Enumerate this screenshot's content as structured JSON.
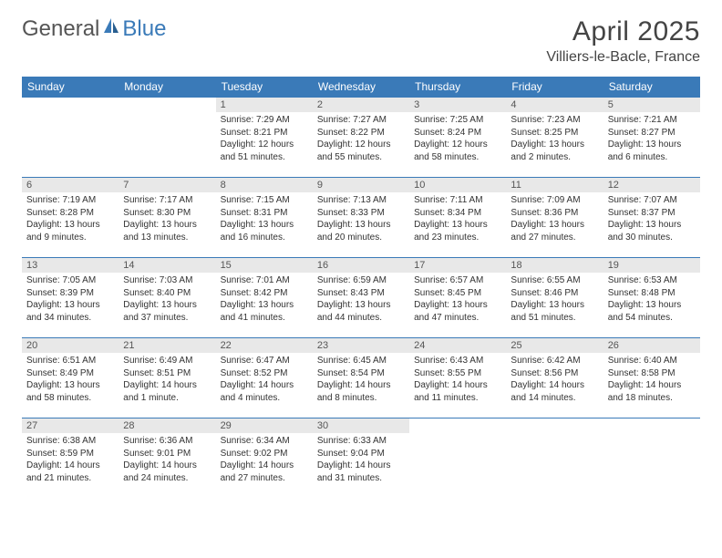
{
  "logo": {
    "text1": "General",
    "text2": "Blue"
  },
  "title": "April 2025",
  "location": "Villiers-le-Bacle, France",
  "colors": {
    "header_bg": "#3a7ab8",
    "header_text": "#ffffff",
    "daynum_bg": "#e8e8e8",
    "border": "#3a7ab8",
    "body_text": "#333333"
  },
  "day_headers": [
    "Sunday",
    "Monday",
    "Tuesday",
    "Wednesday",
    "Thursday",
    "Friday",
    "Saturday"
  ],
  "weeks": [
    [
      {
        "n": "",
        "sr": "",
        "ss": "",
        "dl": ""
      },
      {
        "n": "",
        "sr": "",
        "ss": "",
        "dl": ""
      },
      {
        "n": "1",
        "sr": "Sunrise: 7:29 AM",
        "ss": "Sunset: 8:21 PM",
        "dl": "Daylight: 12 hours and 51 minutes."
      },
      {
        "n": "2",
        "sr": "Sunrise: 7:27 AM",
        "ss": "Sunset: 8:22 PM",
        "dl": "Daylight: 12 hours and 55 minutes."
      },
      {
        "n": "3",
        "sr": "Sunrise: 7:25 AM",
        "ss": "Sunset: 8:24 PM",
        "dl": "Daylight: 12 hours and 58 minutes."
      },
      {
        "n": "4",
        "sr": "Sunrise: 7:23 AM",
        "ss": "Sunset: 8:25 PM",
        "dl": "Daylight: 13 hours and 2 minutes."
      },
      {
        "n": "5",
        "sr": "Sunrise: 7:21 AM",
        "ss": "Sunset: 8:27 PM",
        "dl": "Daylight: 13 hours and 6 minutes."
      }
    ],
    [
      {
        "n": "6",
        "sr": "Sunrise: 7:19 AM",
        "ss": "Sunset: 8:28 PM",
        "dl": "Daylight: 13 hours and 9 minutes."
      },
      {
        "n": "7",
        "sr": "Sunrise: 7:17 AM",
        "ss": "Sunset: 8:30 PM",
        "dl": "Daylight: 13 hours and 13 minutes."
      },
      {
        "n": "8",
        "sr": "Sunrise: 7:15 AM",
        "ss": "Sunset: 8:31 PM",
        "dl": "Daylight: 13 hours and 16 minutes."
      },
      {
        "n": "9",
        "sr": "Sunrise: 7:13 AM",
        "ss": "Sunset: 8:33 PM",
        "dl": "Daylight: 13 hours and 20 minutes."
      },
      {
        "n": "10",
        "sr": "Sunrise: 7:11 AM",
        "ss": "Sunset: 8:34 PM",
        "dl": "Daylight: 13 hours and 23 minutes."
      },
      {
        "n": "11",
        "sr": "Sunrise: 7:09 AM",
        "ss": "Sunset: 8:36 PM",
        "dl": "Daylight: 13 hours and 27 minutes."
      },
      {
        "n": "12",
        "sr": "Sunrise: 7:07 AM",
        "ss": "Sunset: 8:37 PM",
        "dl": "Daylight: 13 hours and 30 minutes."
      }
    ],
    [
      {
        "n": "13",
        "sr": "Sunrise: 7:05 AM",
        "ss": "Sunset: 8:39 PM",
        "dl": "Daylight: 13 hours and 34 minutes."
      },
      {
        "n": "14",
        "sr": "Sunrise: 7:03 AM",
        "ss": "Sunset: 8:40 PM",
        "dl": "Daylight: 13 hours and 37 minutes."
      },
      {
        "n": "15",
        "sr": "Sunrise: 7:01 AM",
        "ss": "Sunset: 8:42 PM",
        "dl": "Daylight: 13 hours and 41 minutes."
      },
      {
        "n": "16",
        "sr": "Sunrise: 6:59 AM",
        "ss": "Sunset: 8:43 PM",
        "dl": "Daylight: 13 hours and 44 minutes."
      },
      {
        "n": "17",
        "sr": "Sunrise: 6:57 AM",
        "ss": "Sunset: 8:45 PM",
        "dl": "Daylight: 13 hours and 47 minutes."
      },
      {
        "n": "18",
        "sr": "Sunrise: 6:55 AM",
        "ss": "Sunset: 8:46 PM",
        "dl": "Daylight: 13 hours and 51 minutes."
      },
      {
        "n": "19",
        "sr": "Sunrise: 6:53 AM",
        "ss": "Sunset: 8:48 PM",
        "dl": "Daylight: 13 hours and 54 minutes."
      }
    ],
    [
      {
        "n": "20",
        "sr": "Sunrise: 6:51 AM",
        "ss": "Sunset: 8:49 PM",
        "dl": "Daylight: 13 hours and 58 minutes."
      },
      {
        "n": "21",
        "sr": "Sunrise: 6:49 AM",
        "ss": "Sunset: 8:51 PM",
        "dl": "Daylight: 14 hours and 1 minute."
      },
      {
        "n": "22",
        "sr": "Sunrise: 6:47 AM",
        "ss": "Sunset: 8:52 PM",
        "dl": "Daylight: 14 hours and 4 minutes."
      },
      {
        "n": "23",
        "sr": "Sunrise: 6:45 AM",
        "ss": "Sunset: 8:54 PM",
        "dl": "Daylight: 14 hours and 8 minutes."
      },
      {
        "n": "24",
        "sr": "Sunrise: 6:43 AM",
        "ss": "Sunset: 8:55 PM",
        "dl": "Daylight: 14 hours and 11 minutes."
      },
      {
        "n": "25",
        "sr": "Sunrise: 6:42 AM",
        "ss": "Sunset: 8:56 PM",
        "dl": "Daylight: 14 hours and 14 minutes."
      },
      {
        "n": "26",
        "sr": "Sunrise: 6:40 AM",
        "ss": "Sunset: 8:58 PM",
        "dl": "Daylight: 14 hours and 18 minutes."
      }
    ],
    [
      {
        "n": "27",
        "sr": "Sunrise: 6:38 AM",
        "ss": "Sunset: 8:59 PM",
        "dl": "Daylight: 14 hours and 21 minutes."
      },
      {
        "n": "28",
        "sr": "Sunrise: 6:36 AM",
        "ss": "Sunset: 9:01 PM",
        "dl": "Daylight: 14 hours and 24 minutes."
      },
      {
        "n": "29",
        "sr": "Sunrise: 6:34 AM",
        "ss": "Sunset: 9:02 PM",
        "dl": "Daylight: 14 hours and 27 minutes."
      },
      {
        "n": "30",
        "sr": "Sunrise: 6:33 AM",
        "ss": "Sunset: 9:04 PM",
        "dl": "Daylight: 14 hours and 31 minutes."
      },
      {
        "n": "",
        "sr": "",
        "ss": "",
        "dl": ""
      },
      {
        "n": "",
        "sr": "",
        "ss": "",
        "dl": ""
      },
      {
        "n": "",
        "sr": "",
        "ss": "",
        "dl": ""
      }
    ]
  ]
}
